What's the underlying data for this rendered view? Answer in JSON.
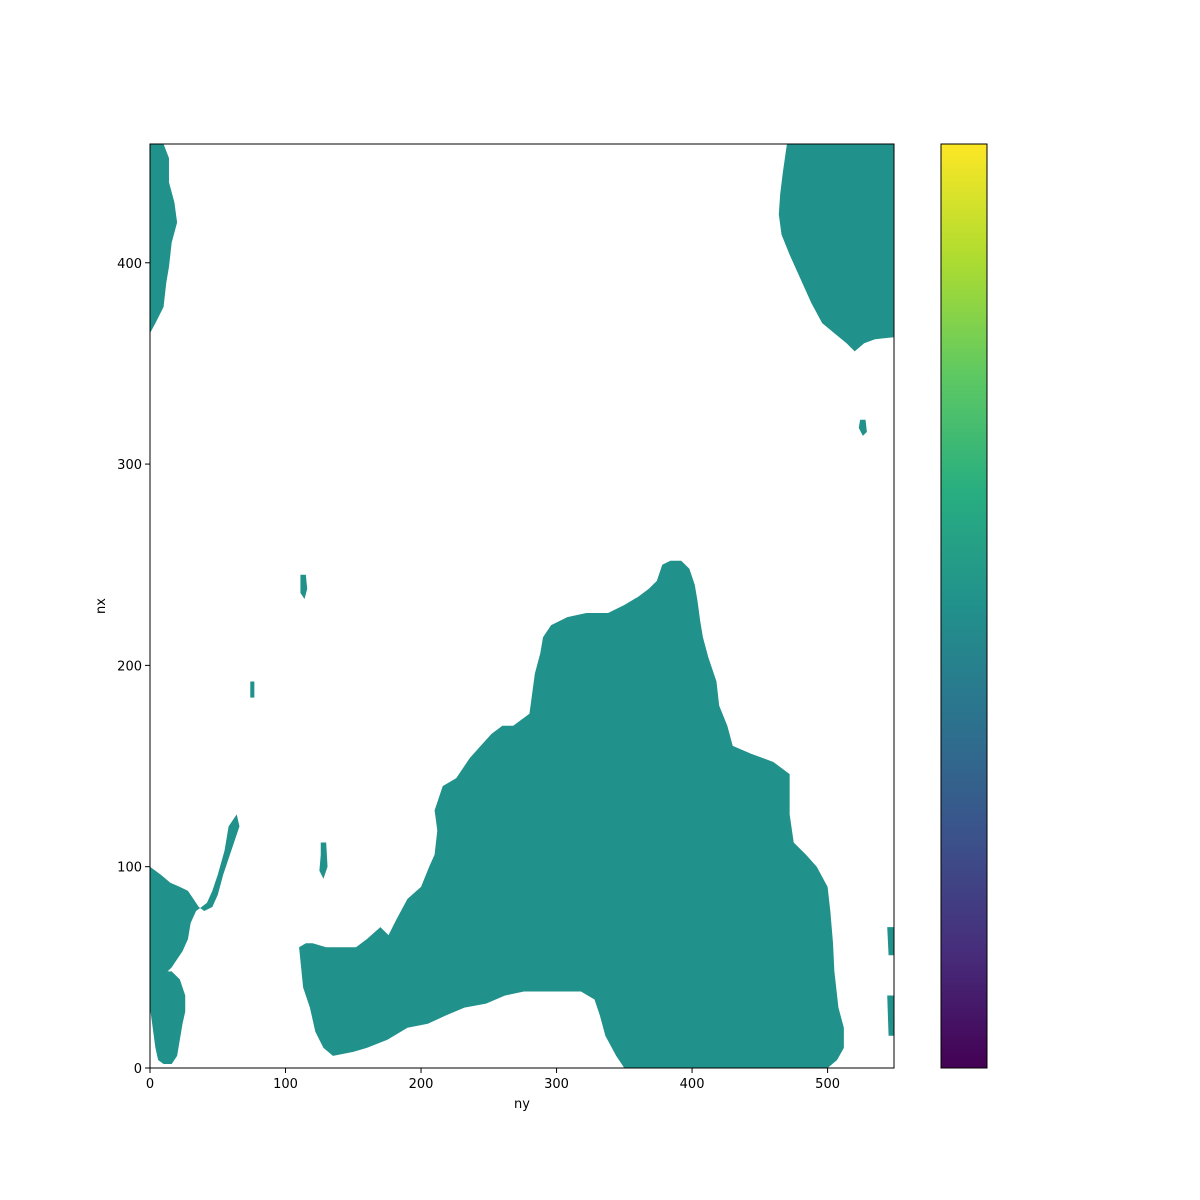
{
  "chart_data": {
    "type": "heatmap",
    "xlabel": "ny",
    "ylabel": "nx",
    "xlim": [
      0,
      549
    ],
    "ylim": [
      0,
      459
    ],
    "x_ticks": [
      0,
      100,
      200,
      300,
      400,
      500
    ],
    "x_tick_labels": [
      "0",
      "100",
      "200",
      "300",
      "400",
      "500"
    ],
    "y_ticks": [
      0,
      100,
      200,
      300,
      400
    ],
    "y_tick_labels": [
      "0",
      "100",
      "200",
      "300",
      "400"
    ],
    "mask_value": 0.0,
    "mask_color": "#21918c",
    "background_color": "#ffffff",
    "regions": [
      {
        "name": "south-america-mainland",
        "polygon": [
          [
            110,
            60
          ],
          [
            113,
            40
          ],
          [
            118,
            30
          ],
          [
            122,
            18
          ],
          [
            128,
            10
          ],
          [
            135,
            6
          ],
          [
            150,
            8
          ],
          [
            160,
            10
          ],
          [
            175,
            14
          ],
          [
            190,
            20
          ],
          [
            205,
            22
          ],
          [
            218,
            26
          ],
          [
            232,
            30
          ],
          [
            248,
            32
          ],
          [
            262,
            36
          ],
          [
            276,
            38
          ],
          [
            300,
            38
          ],
          [
            318,
            38
          ],
          [
            328,
            34
          ],
          [
            332,
            26
          ],
          [
            336,
            16
          ],
          [
            344,
            6
          ],
          [
            350,
            0
          ],
          [
            500,
            0
          ],
          [
            507,
            4
          ],
          [
            512,
            10
          ],
          [
            512,
            20
          ],
          [
            508,
            30
          ],
          [
            505,
            48
          ],
          [
            504,
            62
          ],
          [
            502,
            78
          ],
          [
            500,
            90
          ],
          [
            492,
            100
          ],
          [
            484,
            106
          ],
          [
            475,
            112
          ],
          [
            472,
            126
          ],
          [
            472,
            146
          ],
          [
            460,
            152
          ],
          [
            444,
            156
          ],
          [
            430,
            160
          ],
          [
            426,
            170
          ],
          [
            420,
            180
          ],
          [
            418,
            192
          ],
          [
            412,
            204
          ],
          [
            408,
            214
          ],
          [
            406,
            222
          ],
          [
            404,
            232
          ],
          [
            402,
            240
          ],
          [
            398,
            248
          ],
          [
            392,
            252
          ],
          [
            384,
            252
          ],
          [
            378,
            250
          ],
          [
            374,
            242
          ],
          [
            368,
            238
          ],
          [
            360,
            234
          ],
          [
            350,
            230
          ],
          [
            338,
            226
          ],
          [
            322,
            226
          ],
          [
            308,
            224
          ],
          [
            296,
            220
          ],
          [
            290,
            214
          ],
          [
            288,
            206
          ],
          [
            284,
            196
          ],
          [
            282,
            186
          ],
          [
            280,
            176
          ],
          [
            268,
            170
          ],
          [
            260,
            170
          ],
          [
            252,
            166
          ],
          [
            244,
            160
          ],
          [
            236,
            154
          ],
          [
            226,
            144
          ],
          [
            216,
            140
          ],
          [
            210,
            128
          ],
          [
            212,
            118
          ],
          [
            210,
            106
          ],
          [
            206,
            100
          ],
          [
            200,
            90
          ],
          [
            190,
            84
          ],
          [
            182,
            74
          ],
          [
            176,
            66
          ],
          [
            170,
            70
          ],
          [
            160,
            64
          ],
          [
            152,
            60
          ],
          [
            138,
            60
          ],
          [
            130,
            60
          ],
          [
            120,
            62
          ],
          [
            115,
            62
          ]
        ]
      },
      {
        "name": "africa-upper-right",
        "polygon": [
          [
            470,
            459
          ],
          [
            549,
            459
          ],
          [
            549,
            363
          ],
          [
            535,
            362
          ],
          [
            527,
            360
          ],
          [
            520,
            356
          ],
          [
            514,
            360
          ],
          [
            505,
            365
          ],
          [
            496,
            370
          ],
          [
            488,
            380
          ],
          [
            480,
            392
          ],
          [
            472,
            404
          ],
          [
            466,
            414
          ],
          [
            464,
            424
          ],
          [
            465,
            434
          ],
          [
            467,
            445
          ]
        ]
      },
      {
        "name": "central-america-strip",
        "polygon": [
          [
            0,
            459
          ],
          [
            10,
            459
          ],
          [
            14,
            452
          ],
          [
            14,
            440
          ],
          [
            18,
            430
          ],
          [
            20,
            420
          ],
          [
            16,
            410
          ],
          [
            14,
            398
          ],
          [
            12,
            390
          ],
          [
            10,
            378
          ],
          [
            4,
            370
          ],
          [
            0,
            365
          ]
        ]
      },
      {
        "name": "caribbean-lower-left",
        "polygon": [
          [
            0,
            100
          ],
          [
            8,
            96
          ],
          [
            15,
            92
          ],
          [
            22,
            90
          ],
          [
            28,
            88
          ],
          [
            32,
            84
          ],
          [
            36,
            80
          ],
          [
            40,
            78
          ],
          [
            46,
            80
          ],
          [
            50,
            86
          ],
          [
            54,
            96
          ],
          [
            58,
            104
          ],
          [
            62,
            112
          ],
          [
            66,
            120
          ],
          [
            64,
            126
          ],
          [
            58,
            120
          ],
          [
            55,
            108
          ],
          [
            50,
            96
          ],
          [
            46,
            88
          ],
          [
            42,
            82
          ],
          [
            38,
            80
          ],
          [
            34,
            78
          ],
          [
            30,
            72
          ],
          [
            28,
            64
          ],
          [
            24,
            58
          ],
          [
            20,
            54
          ],
          [
            16,
            50
          ],
          [
            10,
            46
          ],
          [
            6,
            42
          ],
          [
            2,
            40
          ],
          [
            0,
            40
          ]
        ]
      },
      {
        "name": "central-america-lower",
        "polygon": [
          [
            0,
            40
          ],
          [
            4,
            44
          ],
          [
            10,
            48
          ],
          [
            16,
            48
          ],
          [
            22,
            44
          ],
          [
            26,
            36
          ],
          [
            26,
            28
          ],
          [
            24,
            22
          ],
          [
            22,
            14
          ],
          [
            20,
            6
          ],
          [
            16,
            2
          ],
          [
            10,
            2
          ],
          [
            6,
            4
          ],
          [
            4,
            10
          ],
          [
            2,
            20
          ],
          [
            0,
            30
          ]
        ]
      },
      {
        "name": "island-113",
        "polygon": [
          [
            111,
            245
          ],
          [
            115,
            245
          ],
          [
            116,
            238
          ],
          [
            114,
            233
          ],
          [
            111,
            236
          ]
        ]
      },
      {
        "name": "island-75",
        "polygon": [
          [
            74,
            192
          ],
          [
            77,
            192
          ],
          [
            77,
            184
          ],
          [
            74,
            184
          ]
        ]
      },
      {
        "name": "island-128",
        "polygon": [
          [
            126,
            112
          ],
          [
            130,
            112
          ],
          [
            131,
            100
          ],
          [
            128,
            94
          ],
          [
            125,
            98
          ],
          [
            126,
            106
          ]
        ]
      },
      {
        "name": "island-525",
        "polygon": [
          [
            524,
            322
          ],
          [
            528,
            322
          ],
          [
            529,
            316
          ],
          [
            526,
            314
          ],
          [
            523,
            318
          ]
        ]
      },
      {
        "name": "island-540",
        "polygon": [
          [
            544,
            70
          ],
          [
            549,
            70
          ],
          [
            549,
            56
          ],
          [
            545,
            56
          ]
        ]
      },
      {
        "name": "island-545",
        "polygon": [
          [
            544,
            36
          ],
          [
            549,
            36
          ],
          [
            549,
            16
          ],
          [
            545,
            16
          ]
        ]
      }
    ]
  }
}
